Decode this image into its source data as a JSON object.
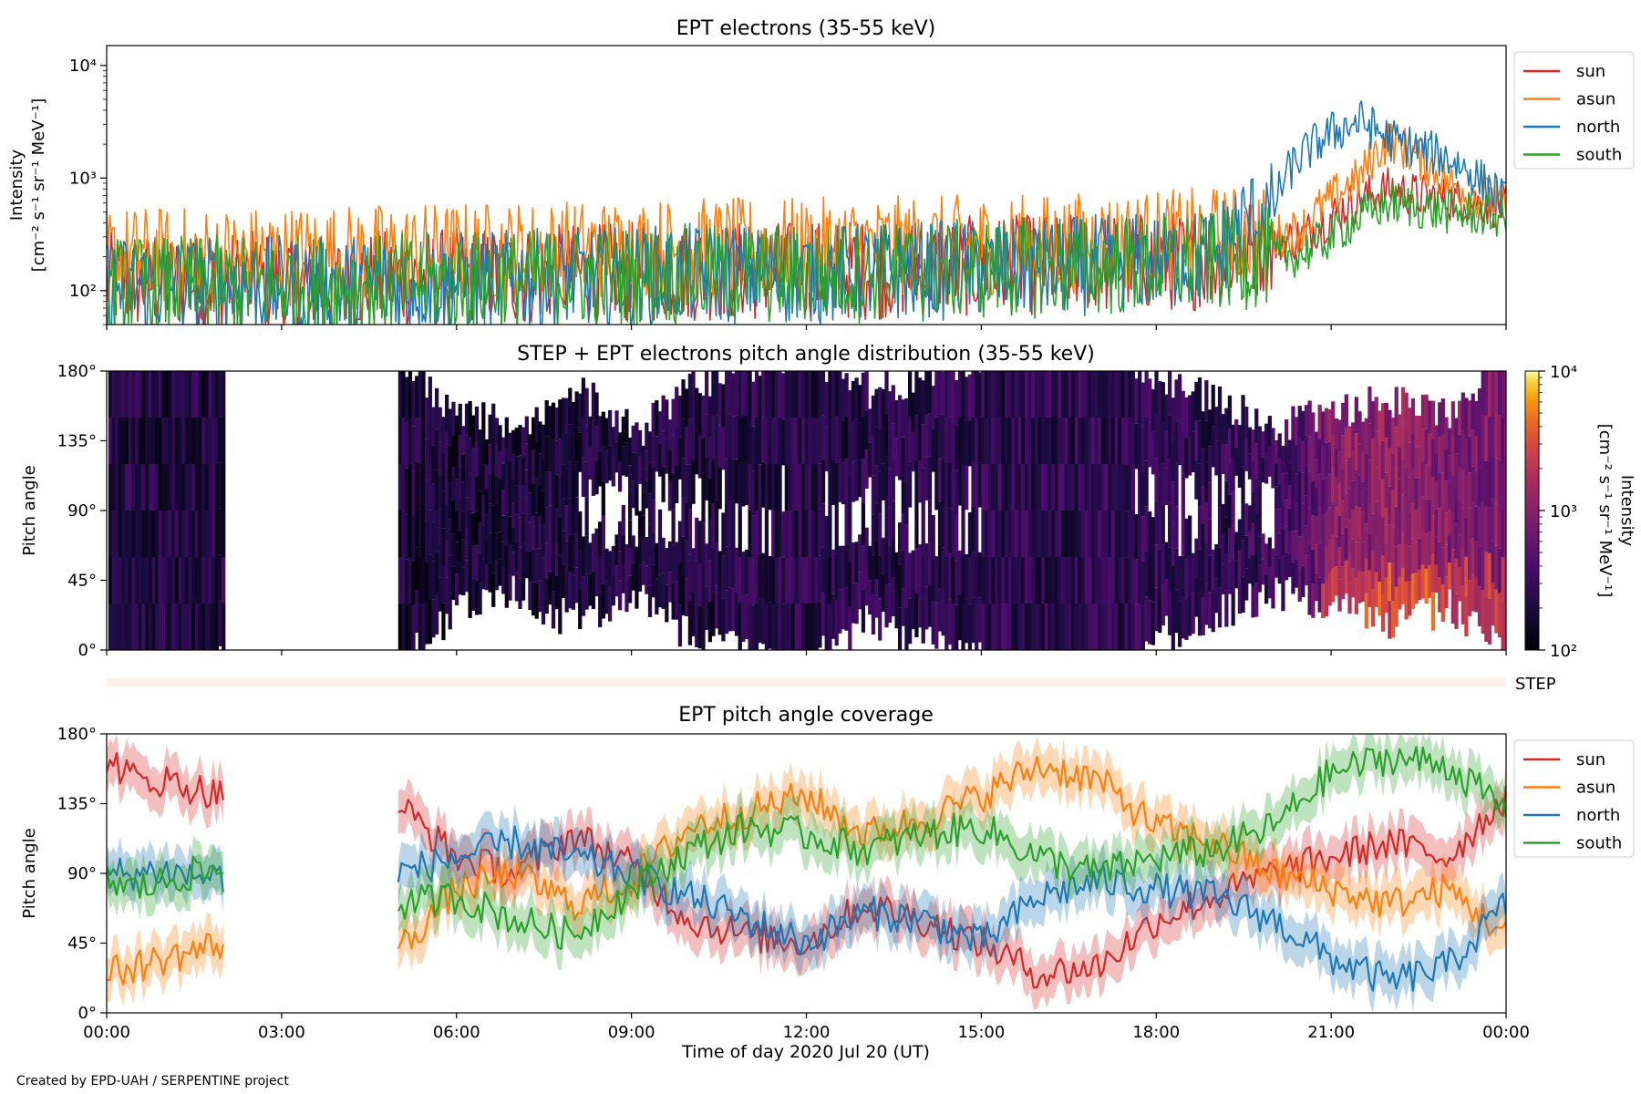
{
  "figure": {
    "credit": "Created by EPD-UAH / SERPENTINE project"
  },
  "chart_data": [
    {
      "type": "line",
      "title": "EPT electrons (35-55 keV)",
      "ylabel_line1": "Intensity",
      "ylabel_line2": "[cm⁻² s⁻¹ sr⁻¹ MeV⁻¹]",
      "yscale": "log",
      "ylim": [
        50,
        15000
      ],
      "yticks": [
        "10²",
        "10³",
        "10⁴"
      ],
      "ytick_values": [
        100,
        1000,
        10000
      ],
      "xlim_hours": [
        0,
        24
      ],
      "grid": false,
      "legend_position": "right-outside-top",
      "series": [
        {
          "name": "sun",
          "color": "#d62728",
          "x": [
            0,
            2,
            4,
            6,
            8,
            10,
            12,
            14,
            16,
            18,
            19,
            20,
            20.5,
            21,
            21.5,
            22,
            22.5,
            23,
            23.5,
            24
          ],
          "values": [
            120,
            120,
            120,
            130,
            140,
            150,
            150,
            160,
            170,
            180,
            190,
            260,
            300,
            450,
            650,
            800,
            700,
            650,
            600,
            550
          ]
        },
        {
          "name": "asun",
          "color": "#ff7f0e",
          "x": [
            0,
            2,
            4,
            6,
            8,
            10,
            12,
            14,
            16,
            18,
            19,
            20,
            20.5,
            21,
            21.5,
            22,
            22.5,
            23,
            23.5,
            24
          ],
          "values": [
            200,
            200,
            210,
            220,
            230,
            240,
            240,
            250,
            260,
            280,
            300,
            300,
            350,
            650,
            1000,
            2200,
            1500,
            900,
            700,
            600
          ]
        },
        {
          "name": "north",
          "color": "#1f77b4",
          "x": [
            0,
            2,
            4,
            6,
            8,
            10,
            12,
            14,
            16,
            18,
            19,
            19.5,
            20,
            20.3,
            21,
            21.5,
            22,
            22.5,
            23,
            23.5,
            24
          ],
          "values": [
            110,
            110,
            110,
            120,
            130,
            140,
            140,
            150,
            160,
            180,
            200,
            400,
            500,
            1200,
            2500,
            3200,
            2200,
            1800,
            1500,
            1000,
            600
          ]
        },
        {
          "name": "south",
          "color": "#2ca02c",
          "x": [
            0,
            2,
            4,
            6,
            8,
            10,
            12,
            14,
            16,
            18,
            19,
            20,
            20.5,
            21,
            21.5,
            22,
            22.5,
            23,
            23.5,
            24
          ],
          "values": [
            110,
            110,
            110,
            120,
            130,
            140,
            140,
            150,
            160,
            170,
            180,
            200,
            210,
            300,
            450,
            600,
            550,
            500,
            480,
            450
          ]
        }
      ]
    },
    {
      "type": "heatmap",
      "title": "STEP + EPT electrons pitch angle distribution (35-55 keV)",
      "ylabel": "Pitch angle",
      "ylim": [
        0,
        180
      ],
      "yticks": [
        "0°",
        "45°",
        "90°",
        "135°",
        "180°"
      ],
      "xlim_hours": [
        0,
        24
      ],
      "colorbar": {
        "label_line1": "Intensity",
        "label_line2": "[cm⁻² s⁻¹ sr⁻¹ MeV⁻¹]",
        "scale": "log",
        "range": [
          100,
          10000
        ],
        "ticks": [
          "10²",
          "10³",
          "10⁴"
        ],
        "colormap": "inferno"
      },
      "data_gap_hours": [
        2.0,
        5.0
      ],
      "intensity_profile": {
        "x": [
          0,
          2,
          5,
          8,
          12,
          16,
          19,
          20,
          20.5,
          21,
          22,
          23,
          24
        ],
        "values": [
          200,
          210,
          180,
          200,
          230,
          250,
          260,
          330,
          400,
          900,
          1100,
          900,
          800
        ]
      },
      "step_label": "STEP"
    },
    {
      "type": "line",
      "title": "EPT pitch angle coverage",
      "ylabel": "Pitch angle",
      "xlabel": "Time of day 2020 Jul 20 (UT)",
      "ylim": [
        0,
        180
      ],
      "yticks": [
        "0°",
        "45°",
        "90°",
        "135°",
        "180°"
      ],
      "xlim_hours": [
        0,
        24
      ],
      "xticks": [
        "00:00",
        "03:00",
        "06:00",
        "09:00",
        "12:00",
        "15:00",
        "18:00",
        "21:00",
        "00:00"
      ],
      "grid": false,
      "legend_position": "right-outside-top",
      "data_gap_hours": [
        2.0,
        5.0
      ],
      "series": [
        {
          "name": "sun",
          "color": "#d62728",
          "x": [
            0,
            0.5,
            1,
            1.5,
            2,
            5,
            6,
            7,
            8,
            9,
            10,
            11,
            12,
            13,
            14,
            15,
            16,
            17,
            18,
            19,
            20,
            21,
            22,
            23,
            24
          ],
          "values": [
            165,
            150,
            150,
            145,
            140,
            135,
            100,
            90,
            115,
            95,
            60,
            50,
            45,
            70,
            60,
            45,
            25,
            30,
            60,
            75,
            90,
            100,
            110,
            100,
            140
          ]
        },
        {
          "name": "asun",
          "color": "#ff7f0e",
          "x": [
            0,
            0.5,
            1,
            1.5,
            2,
            5,
            6,
            7,
            8,
            9,
            10,
            11,
            12,
            13,
            14,
            15,
            16,
            17,
            18,
            19,
            20,
            21,
            22,
            23,
            24
          ],
          "values": [
            25,
            30,
            35,
            40,
            45,
            40,
            80,
            90,
            70,
            85,
            120,
            130,
            140,
            115,
            125,
            140,
            160,
            150,
            120,
            110,
            90,
            80,
            70,
            80,
            50
          ]
        },
        {
          "name": "north",
          "color": "#1f77b4",
          "x": [
            0,
            0.5,
            1,
            1.5,
            2,
            5,
            6,
            7,
            8,
            9,
            10,
            11,
            12,
            13,
            14,
            15,
            16,
            17,
            18,
            19,
            20,
            21,
            22,
            23,
            24
          ],
          "values": [
            90,
            90,
            92,
            88,
            88,
            90,
            100,
            110,
            100,
            90,
            75,
            60,
            45,
            65,
            60,
            45,
            75,
            85,
            80,
            75,
            60,
            35,
            20,
            30,
            70
          ]
        },
        {
          "name": "south",
          "color": "#2ca02c",
          "x": [
            0,
            0.5,
            1,
            1.5,
            2,
            5,
            6,
            7,
            8,
            9,
            10,
            11,
            12,
            13,
            14,
            15,
            16,
            17,
            18,
            19,
            20,
            21,
            22,
            23,
            24
          ],
          "values": [
            85,
            80,
            85,
            90,
            92,
            70,
            75,
            60,
            50,
            80,
            105,
            120,
            115,
            105,
            115,
            120,
            100,
            90,
            100,
            105,
            120,
            155,
            165,
            160,
            130
          ]
        }
      ]
    }
  ]
}
